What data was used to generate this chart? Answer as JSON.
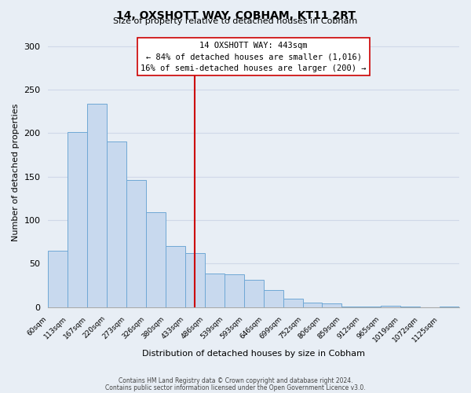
{
  "title": "14, OXSHOTT WAY, COBHAM, KT11 2RT",
  "subtitle": "Size of property relative to detached houses in Cobham",
  "xlabel": "Distribution of detached houses by size in Cobham",
  "ylabel": "Number of detached properties",
  "bin_labels": [
    "60sqm",
    "113sqm",
    "167sqm",
    "220sqm",
    "273sqm",
    "326sqm",
    "380sqm",
    "433sqm",
    "486sqm",
    "539sqm",
    "593sqm",
    "646sqm",
    "699sqm",
    "752sqm",
    "806sqm",
    "859sqm",
    "912sqm",
    "965sqm",
    "1019sqm",
    "1072sqm",
    "1125sqm"
  ],
  "bar_heights": [
    65,
    201,
    234,
    190,
    146,
    109,
    70,
    62,
    39,
    38,
    31,
    20,
    10,
    5,
    4,
    1,
    1,
    2,
    1,
    0,
    1
  ],
  "bar_color": "#c8d9ee",
  "bar_edge_color": "#6fa8d5",
  "property_line_x": 7.5,
  "property_line_label": "14 OXSHOTT WAY: 443sqm",
  "annotation_line1": "← 84% of detached houses are smaller (1,016)",
  "annotation_line2": "16% of semi-detached houses are larger (200) →",
  "vline_color": "#cc0000",
  "annotation_box_color": "#ffffff",
  "annotation_box_edge": "#cc0000",
  "footnote1": "Contains HM Land Registry data © Crown copyright and database right 2024.",
  "footnote2": "Contains public sector information licensed under the Open Government Licence v3.0.",
  "ylim": [
    0,
    310
  ],
  "grid_color": "#d0d8e8",
  "background_color": "#e8eef5"
}
